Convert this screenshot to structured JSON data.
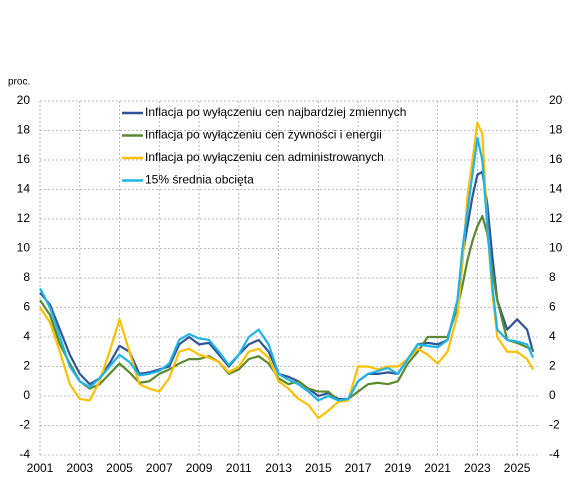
{
  "chart_data": {
    "type": "line",
    "ylabel": "proc.",
    "x": [
      2001,
      2001.5,
      2002,
      2002.5,
      2003,
      2003.5,
      2004,
      2004.5,
      2005,
      2005.5,
      2006,
      2006.5,
      2007,
      2007.5,
      2008,
      2008.5,
      2009,
      2009.5,
      2010,
      2010.5,
      2011,
      2011.5,
      2012,
      2012.5,
      2013,
      2013.5,
      2014,
      2014.5,
      2015,
      2015.5,
      2016,
      2016.5,
      2017,
      2017.5,
      2018,
      2018.5,
      2019,
      2019.5,
      2020,
      2020.5,
      2021,
      2021.5,
      2022,
      2022.25,
      2022.5,
      2022.75,
      2023,
      2023.25,
      2023.5,
      2023.75,
      2024,
      2024.5,
      2025,
      2025.5,
      2025.8
    ],
    "series": [
      {
        "name": "Inflacja po wyłączeniu cen najbardziej zmiennych",
        "color": "#2f5597",
        "values": [
          7,
          6.2,
          4.5,
          2.8,
          1.5,
          0.8,
          1.2,
          2.2,
          3.4,
          3.0,
          1.5,
          1.6,
          1.8,
          2.0,
          3.5,
          4.0,
          3.5,
          3.6,
          2.8,
          2.0,
          2.8,
          3.5,
          3.8,
          3.0,
          1.5,
          1.3,
          1.0,
          0.5,
          0.0,
          0.2,
          -0.2,
          -0.2,
          1.0,
          1.5,
          1.5,
          1.6,
          1.5,
          2.5,
          3.5,
          3.6,
          3.5,
          3.8,
          6.5,
          9.5,
          11.5,
          13.5,
          15,
          15.2,
          13,
          9.5,
          6.5,
          4.5,
          5.2,
          4.5,
          3.0
        ]
      },
      {
        "name": "Inflacja po wyłączeniu cen żywności i energii",
        "color": "#5b8a2e",
        "values": [
          6.5,
          5.5,
          3.5,
          2.2,
          1.0,
          0.5,
          0.8,
          1.5,
          2.2,
          1.6,
          0.9,
          1.0,
          1.5,
          1.8,
          2.2,
          2.5,
          2.5,
          2.7,
          2.3,
          1.5,
          1.8,
          2.5,
          2.7,
          2.2,
          1.2,
          0.8,
          1.0,
          0.5,
          0.3,
          0.3,
          -0.3,
          -0.2,
          0.3,
          0.8,
          0.9,
          0.8,
          1.0,
          2.2,
          3.0,
          4.0,
          4.0,
          4.0,
          6.0,
          7.5,
          9.2,
          10.5,
          11.5,
          12.2,
          11.0,
          8.5,
          6.5,
          3.8,
          3.6,
          3.3,
          3.2
        ]
      },
      {
        "name": "Inflacja po wyłączeniu cen administrowanych",
        "color": "#ffc000",
        "values": [
          6,
          5,
          3,
          0.8,
          -0.2,
          -0.3,
          1.0,
          3.0,
          5.2,
          3.0,
          0.8,
          0.5,
          0.3,
          1.2,
          3.0,
          3.2,
          2.8,
          2.6,
          2.3,
          1.6,
          2.0,
          3.0,
          3.2,
          2.6,
          1.0,
          0.5,
          -0.2,
          -0.6,
          -1.5,
          -1.0,
          -0.4,
          -0.3,
          2.0,
          2.0,
          1.8,
          2.0,
          2.0,
          2.5,
          3.2,
          2.8,
          2.2,
          3.0,
          5.5,
          9.0,
          13.5,
          16.0,
          18.5,
          17.8,
          11.5,
          7.0,
          4.0,
          3.0,
          3.0,
          2.5,
          1.8
        ]
      },
      {
        "name": "15% średnia obcięta",
        "color": "#1fb4e8",
        "values": [
          7.3,
          6.0,
          4.0,
          2.0,
          1.0,
          0.6,
          1.2,
          2.0,
          2.8,
          2.3,
          1.4,
          1.5,
          1.7,
          2.2,
          3.8,
          4.2,
          3.9,
          3.8,
          3.0,
          2.1,
          2.8,
          4.0,
          4.5,
          3.5,
          1.5,
          1.1,
          0.8,
          0.3,
          -0.3,
          0.0,
          -0.3,
          -0.2,
          1.0,
          1.5,
          1.7,
          1.9,
          1.5,
          2.5,
          3.5,
          3.4,
          3.3,
          3.8,
          6.5,
          10.0,
          12.5,
          15.0,
          17.5,
          16.0,
          11.5,
          7.5,
          4.5,
          3.8,
          3.7,
          3.5,
          2.6
        ]
      }
    ],
    "xlim": [
      2001,
      2026.1
    ],
    "xticks": [
      2001,
      2003,
      2005,
      2007,
      2009,
      2011,
      2013,
      2015,
      2017,
      2019,
      2021,
      2023,
      2025
    ],
    "ylim": [
      -4,
      20
    ],
    "yticks": [
      -4,
      -2,
      0,
      2,
      4,
      6,
      8,
      10,
      12,
      14,
      16,
      18,
      20
    ],
    "y2lim": [
      -4,
      20
    ],
    "y2ticks": [
      -4,
      -2,
      0,
      2,
      4,
      6,
      8,
      10,
      12,
      14,
      16,
      18,
      20
    ],
    "grid": true,
    "legend": "upper-left"
  }
}
